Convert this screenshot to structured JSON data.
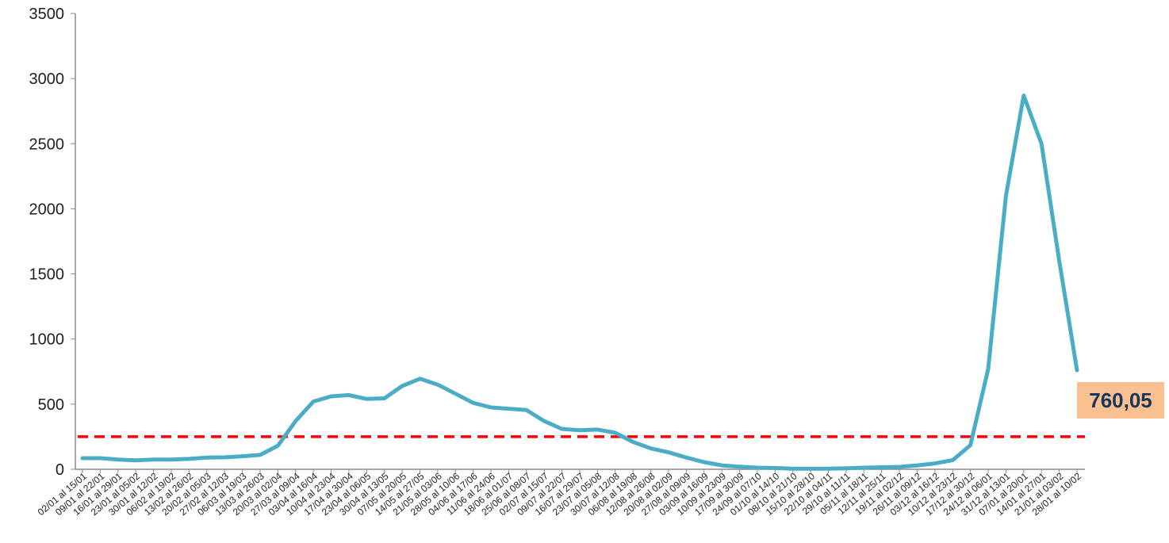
{
  "chart_data": {
    "type": "line",
    "title": "",
    "xlabel": "",
    "ylabel": "",
    "ylim": [
      0,
      3500
    ],
    "yticks": [
      0,
      500,
      1000,
      1500,
      2000,
      2500,
      3000,
      3500
    ],
    "grid": false,
    "legend": "none",
    "categories": [
      "02/01 al 15/01",
      "09/01 al 22/01",
      "16/01 al 29/01",
      "23/01 al 05/02",
      "30/01 al 12/02",
      "06/02 al 19/02",
      "13/02 al 26/02",
      "20/02 al 05/03",
      "27/02 al 12/03",
      "06/03 al 19/03",
      "13/03 al 26/03",
      "20/03 al 02/04",
      "27/03 al 09/04",
      "03/04 al 16/04",
      "10/04 al 23/04",
      "17/04 al 30/04",
      "23/04 al 06/05",
      "30/04 al 13/05",
      "07/05 al 20/05",
      "14/05 al 27/05",
      "21/05 al 03/06",
      "28/05 al 10/06",
      "04/06 al 17/06",
      "11/06 al 24/06",
      "18/06 al 01/07",
      "25/06 al 08/07",
      "02/07 al 15/07",
      "09/07 al 22/07",
      "16/07 al 29/07",
      "23/07 al 05/08",
      "30/07 al 12/08",
      "06/08 al 19/08",
      "12/08 al 26/08",
      "20/08 al 02/09",
      "27/08 al 09/09",
      "03/09 al 16/09",
      "10/09 al 23/09",
      "17/09 al 30/09",
      "24/09 al 07/10",
      "01/10 al 14/10",
      "08/10 al 21/10",
      "15/10 al 28/10",
      "22/10 al 04/11",
      "29/10 al 11/11",
      "05/11 al 18/11",
      "12/11 al 25/11",
      "19/11 al 02/12",
      "26/11 al 09/12",
      "03/12 al 16/12",
      "10/12 al 23/12",
      "17/12 al 30/12",
      "24/12 al 06/01",
      "31/12 al 13/01",
      "07/01 al 20/01",
      "14/01 al 27/01",
      "21/01 al 03/02",
      "28/01 al 10/02"
    ],
    "series": [
      {
        "color": "#4bacc6",
        "values": [
          85,
          85,
          75,
          68,
          75,
          75,
          80,
          90,
          92,
          100,
          110,
          180,
          370,
          520,
          560,
          570,
          540,
          545,
          640,
          695,
          650,
          580,
          510,
          475,
          465,
          455,
          370,
          310,
          300,
          305,
          280,
          210,
          160,
          130,
          90,
          55,
          30,
          20,
          12,
          10,
          5,
          5,
          5,
          8,
          12,
          15,
          18,
          30,
          45,
          70,
          185,
          770,
          2100,
          2870,
          2500,
          1600,
          760
        ]
      }
    ],
    "threshold": {
      "value": 250,
      "color": "#ff0000",
      "style": "dashed"
    },
    "annotation": {
      "text": "760,05",
      "background": "#fac090",
      "text_color": "#17365d"
    }
  }
}
